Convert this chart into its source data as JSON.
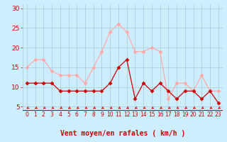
{
  "hours": [
    0,
    1,
    2,
    3,
    4,
    5,
    6,
    7,
    8,
    9,
    10,
    11,
    12,
    13,
    14,
    15,
    16,
    17,
    18,
    19,
    20,
    21,
    22,
    23
  ],
  "avg_wind": [
    11,
    11,
    11,
    11,
    9,
    9,
    9,
    9,
    9,
    9,
    11,
    15,
    17,
    7,
    11,
    9,
    11,
    9,
    7,
    9,
    9,
    7,
    9,
    6
  ],
  "gust_wind": [
    15,
    17,
    17,
    14,
    13,
    13,
    13,
    11,
    15,
    19,
    24,
    26,
    24,
    19,
    19,
    20,
    19,
    7,
    11,
    11,
    9,
    13,
    9,
    9
  ],
  "avg_color": "#cc0000",
  "gust_color": "#ffaaaa",
  "bg_color": "#cceeff",
  "grid_color": "#aacccc",
  "xlabel": "Vent moyen/en rafales ( km/h )",
  "xlabel_color": "#cc0000",
  "tick_color": "#cc0000",
  "arrow_color": "#cc0000",
  "ylim": [
    4,
    31
  ],
  "yticks": [
    5,
    10,
    15,
    20,
    25,
    30
  ]
}
